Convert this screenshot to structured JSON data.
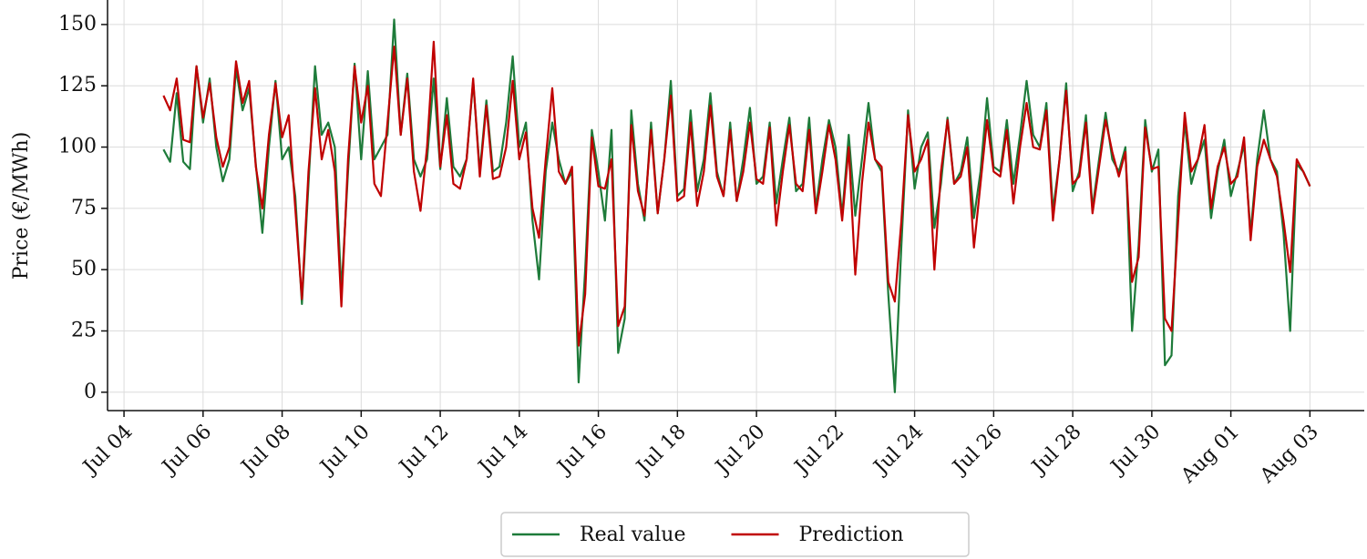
{
  "chart_data": {
    "type": "line",
    "ylabel": "Price (€/MWh)",
    "xlim": [
      "07-03T14:00",
      "08-04T09:00"
    ],
    "xticks": [
      {
        "value": "07-04",
        "label": "Jul 04"
      },
      {
        "value": "07-06",
        "label": "Jul 06"
      },
      {
        "value": "07-08",
        "label": "Jul 08"
      },
      {
        "value": "07-10",
        "label": "Jul 10"
      },
      {
        "value": "07-12",
        "label": "Jul 12"
      },
      {
        "value": "07-14",
        "label": "Jul 14"
      },
      {
        "value": "07-16",
        "label": "Jul 16"
      },
      {
        "value": "07-18",
        "label": "Jul 18"
      },
      {
        "value": "07-20",
        "label": "Jul 20"
      },
      {
        "value": "07-22",
        "label": "Jul 22"
      },
      {
        "value": "07-24",
        "label": "Jul 24"
      },
      {
        "value": "07-26",
        "label": "Jul 26"
      },
      {
        "value": "07-28",
        "label": "Jul 28"
      },
      {
        "value": "07-30",
        "label": "Jul 30"
      },
      {
        "value": "08-01",
        "label": "Aug 01"
      },
      {
        "value": "08-03",
        "label": "Aug 03"
      }
    ],
    "ylim": [
      -7.5,
      160
    ],
    "yticks": [
      0,
      25,
      50,
      75,
      100,
      125,
      150
    ],
    "grid": true,
    "legend": "bottom",
    "x": [
      "07-05T00:00",
      "07-05T04:00",
      "07-05T08:00",
      "07-05T12:00",
      "07-05T16:00",
      "07-05T20:00",
      "07-06T00:00",
      "07-06T04:00",
      "07-06T08:00",
      "07-06T12:00",
      "07-06T16:00",
      "07-06T20:00",
      "07-07T00:00",
      "07-07T04:00",
      "07-07T08:00",
      "07-07T12:00",
      "07-07T16:00",
      "07-07T20:00",
      "07-08T00:00",
      "07-08T04:00",
      "07-08T08:00",
      "07-08T12:00",
      "07-08T16:00",
      "07-08T20:00",
      "07-09T00:00",
      "07-09T04:00",
      "07-09T08:00",
      "07-09T12:00",
      "07-09T16:00",
      "07-09T20:00",
      "07-10T00:00",
      "07-10T04:00",
      "07-10T08:00",
      "07-10T12:00",
      "07-10T16:00",
      "07-10T20:00",
      "07-11T00:00",
      "07-11T04:00",
      "07-11T08:00",
      "07-11T12:00",
      "07-11T16:00",
      "07-11T20:00",
      "07-12T00:00",
      "07-12T04:00",
      "07-12T08:00",
      "07-12T12:00",
      "07-12T16:00",
      "07-12T20:00",
      "07-13T00:00",
      "07-13T04:00",
      "07-13T08:00",
      "07-13T12:00",
      "07-13T16:00",
      "07-13T20:00",
      "07-14T00:00",
      "07-14T04:00",
      "07-14T08:00",
      "07-14T12:00",
      "07-14T16:00",
      "07-14T20:00",
      "07-15T00:00",
      "07-15T04:00",
      "07-15T08:00",
      "07-15T12:00",
      "07-15T16:00",
      "07-15T20:00",
      "07-16T00:00",
      "07-16T04:00",
      "07-16T08:00",
      "07-16T12:00",
      "07-16T16:00",
      "07-16T20:00",
      "07-17T00:00",
      "07-17T04:00",
      "07-17T08:00",
      "07-17T12:00",
      "07-17T16:00",
      "07-17T20:00",
      "07-18T00:00",
      "07-18T04:00",
      "07-18T08:00",
      "07-18T12:00",
      "07-18T16:00",
      "07-18T20:00",
      "07-19T00:00",
      "07-19T04:00",
      "07-19T08:00",
      "07-19T12:00",
      "07-19T16:00",
      "07-19T20:00",
      "07-20T00:00",
      "07-20T04:00",
      "07-20T08:00",
      "07-20T12:00",
      "07-20T16:00",
      "07-20T20:00",
      "07-21T00:00",
      "07-21T04:00",
      "07-21T08:00",
      "07-21T12:00",
      "07-21T16:00",
      "07-21T20:00",
      "07-22T00:00",
      "07-22T04:00",
      "07-22T08:00",
      "07-22T12:00",
      "07-22T16:00",
      "07-22T20:00",
      "07-23T00:00",
      "07-23T04:00",
      "07-23T08:00",
      "07-23T12:00",
      "07-23T16:00",
      "07-23T20:00",
      "07-24T00:00",
      "07-24T04:00",
      "07-24T08:00",
      "07-24T12:00",
      "07-24T16:00",
      "07-24T20:00",
      "07-25T00:00",
      "07-25T04:00",
      "07-25T08:00",
      "07-25T12:00",
      "07-25T16:00",
      "07-25T20:00",
      "07-26T00:00",
      "07-26T04:00",
      "07-26T08:00",
      "07-26T12:00",
      "07-26T16:00",
      "07-26T20:00",
      "07-27T00:00",
      "07-27T04:00",
      "07-27T08:00",
      "07-27T12:00",
      "07-27T16:00",
      "07-27T20:00",
      "07-28T00:00",
      "07-28T04:00",
      "07-28T08:00",
      "07-28T12:00",
      "07-28T16:00",
      "07-28T20:00",
      "07-29T00:00",
      "07-29T04:00",
      "07-29T08:00",
      "07-29T12:00",
      "07-29T16:00",
      "07-29T20:00",
      "07-30T00:00",
      "07-30T04:00",
      "07-30T08:00",
      "07-30T12:00",
      "07-30T16:00",
      "07-30T20:00",
      "07-31T00:00",
      "07-31T04:00",
      "07-31T08:00",
      "07-31T12:00",
      "07-31T16:00",
      "07-31T20:00",
      "08-01T00:00",
      "08-01T04:00",
      "08-01T08:00",
      "08-01T12:00",
      "08-01T16:00",
      "08-01T20:00",
      "08-02T00:00",
      "08-02T04:00",
      "08-02T08:00",
      "08-02T12:00",
      "08-02T16:00",
      "08-02T20:00",
      "08-03T00:00"
    ],
    "series": [
      {
        "name": "Real value",
        "color": "#1e7b3a",
        "values": [
          99,
          94,
          122,
          94,
          91,
          133,
          110,
          128,
          100,
          86,
          95,
          132,
          115,
          124,
          93,
          65,
          100,
          127,
          95,
          100,
          80,
          36,
          85,
          133,
          105,
          110,
          100,
          41,
          90,
          134,
          95,
          131,
          95,
          100,
          105,
          152,
          105,
          130,
          95,
          88,
          95,
          128,
          91,
          120,
          92,
          88,
          95,
          127,
          90,
          119,
          90,
          92,
          110,
          137,
          100,
          110,
          70,
          46,
          90,
          110,
          95,
          85,
          90,
          4,
          50,
          107,
          90,
          70,
          107,
          16,
          30,
          115,
          85,
          70,
          110,
          73,
          95,
          127,
          80,
          83,
          115,
          82,
          95,
          122,
          90,
          80,
          110,
          78,
          95,
          116,
          85,
          88,
          110,
          77,
          95,
          112,
          82,
          85,
          112,
          75,
          95,
          111,
          100,
          72,
          105,
          72,
          95,
          118,
          95,
          90,
          40,
          0,
          60,
          115,
          83,
          100,
          106,
          67,
          85,
          112,
          85,
          90,
          104,
          71,
          90,
          120,
          92,
          90,
          111,
          85,
          105,
          127,
          105,
          100,
          118,
          74,
          95,
          126,
          82,
          90,
          113,
          75,
          95,
          114,
          95,
          90,
          100,
          25,
          60,
          111,
          90,
          99,
          11,
          15,
          80,
          110,
          85,
          95,
          103,
          71,
          90,
          103,
          80,
          90,
          101,
          65,
          95,
          115,
          95,
          90,
          65,
          25,
          93,
          90,
          84
        ]
      },
      {
        "name": "Prediction",
        "color": "#c00000",
        "values": [
          121,
          115,
          128,
          103,
          102,
          133,
          112,
          126,
          104,
          92,
          100,
          135,
          118,
          127,
          92,
          75,
          105,
          126,
          104,
          113,
          75,
          38,
          90,
          124,
          95,
          107,
          90,
          35,
          95,
          133,
          110,
          125,
          85,
          80,
          110,
          141,
          105,
          128,
          90,
          74,
          100,
          143,
          92,
          113,
          85,
          83,
          95,
          128,
          88,
          117,
          87,
          88,
          100,
          127,
          95,
          106,
          75,
          63,
          95,
          124,
          90,
          85,
          92,
          19,
          40,
          104,
          84,
          83,
          95,
          27,
          35,
          109,
          82,
          72,
          107,
          73,
          95,
          121,
          78,
          80,
          110,
          76,
          90,
          117,
          88,
          80,
          107,
          78,
          90,
          110,
          87,
          85,
          108,
          68,
          90,
          109,
          85,
          82,
          107,
          73,
          90,
          109,
          95,
          70,
          100,
          48,
          85,
          110,
          95,
          92,
          45,
          37,
          70,
          113,
          90,
          95,
          103,
          50,
          90,
          111,
          85,
          88,
          100,
          59,
          85,
          111,
          90,
          88,
          107,
          77,
          100,
          118,
          100,
          99,
          115,
          70,
          95,
          123,
          85,
          88,
          110,
          73,
          92,
          111,
          98,
          88,
          98,
          45,
          55,
          108,
          91,
          92,
          30,
          25,
          70,
          114,
          90,
          95,
          109,
          75,
          92,
          100,
          85,
          88,
          104,
          62,
          92,
          103,
          95,
          88,
          70,
          49,
          95,
          90,
          84
        ]
      }
    ]
  }
}
